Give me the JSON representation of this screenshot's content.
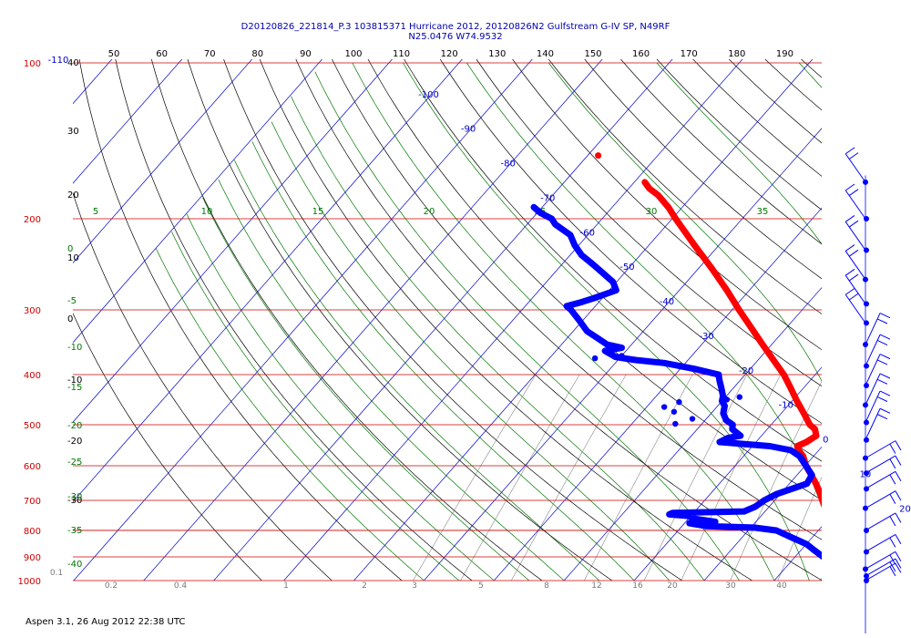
{
  "header": {
    "title_line1": "D20120826_221814_P.3 103815371 Hurricane 2012, 20120826N2 Gulfstream G-IV SP, N49RF",
    "title_line2": "N25.0476 W74.9532"
  },
  "footer": {
    "text": "Aspen 3.1, 26 Aug 2012  22:38 UTC"
  },
  "colors": {
    "temperature": "#ff0000",
    "dewpoint": "#0000ff",
    "isobar": "#cc0000",
    "isotherm": "#0000cc",
    "dry_adiabat": "#000000",
    "moist_adiabat": "#007700",
    "mixing_ratio": "#888888",
    "wind_barb": "#0000ff"
  },
  "chart_data": {
    "type": "scatter",
    "subtype": "skew-T log-P diagram",
    "y_axis": {
      "label": "",
      "scale": "log",
      "ticks": [
        "100",
        "200",
        "300",
        "400",
        "500",
        "600",
        "700",
        "800",
        "900",
        "1000"
      ],
      "ylim": [
        1000,
        100
      ]
    },
    "x_axis_top": {
      "ticks": [
        "50",
        "60",
        "70",
        "80",
        "90",
        "100",
        "110",
        "120",
        "130",
        "140",
        "150",
        "160",
        "170",
        "180",
        "190"
      ]
    },
    "isotherm_labels": [
      "-110",
      "-100",
      "-90",
      "-80",
      "-70",
      "-60",
      "-50",
      "-40",
      "-30",
      "-20",
      "-10",
      "0",
      "10",
      "20",
      "30",
      "40"
    ],
    "dry_adiabat_labels": [
      "40",
      "30",
      "20",
      "10",
      "0",
      "-10",
      "-20",
      "-30"
    ],
    "moist_adiabat_labels_top": [
      "5",
      "10",
      "15",
      "20",
      "25",
      "30",
      "35"
    ],
    "moist_adiabat_labels_left": [
      "0",
      "-5",
      "-10",
      "-15",
      "-20",
      "-25",
      "-30",
      "-35",
      "-40"
    ],
    "mixing_ratio_labels": [
      "0.1",
      "0.2",
      "0.4",
      "1",
      "2",
      "3",
      "5",
      "8",
      "12",
      "16",
      "20",
      "30",
      "40"
    ],
    "series": [
      {
        "name": "temperature",
        "points": [
          [
            1000,
            25.8
          ],
          [
            990,
            25.0
          ],
          [
            975,
            24.0
          ],
          [
            950,
            22.3
          ],
          [
            925,
            20.5
          ],
          [
            900,
            19.3
          ],
          [
            875,
            17.6
          ],
          [
            850,
            16.1
          ],
          [
            825,
            14.5
          ],
          [
            800,
            13.0
          ],
          [
            775,
            11.1
          ],
          [
            750,
            9.6
          ],
          [
            725,
            8.2
          ],
          [
            700,
            6.8
          ],
          [
            675,
            5.4
          ],
          [
            650,
            3.8
          ],
          [
            625,
            2.0
          ],
          [
            600,
            0.1
          ],
          [
            575,
            -1.5
          ],
          [
            560,
            -2.9
          ],
          [
            550,
            -3.6
          ],
          [
            540,
            -2.8
          ],
          [
            525,
            -2.2
          ],
          [
            510,
            -3.2
          ],
          [
            500,
            -4.5
          ],
          [
            475,
            -6.8
          ],
          [
            450,
            -9.3
          ],
          [
            425,
            -11.8
          ],
          [
            400,
            -14.5
          ],
          [
            375,
            -17.8
          ],
          [
            350,
            -21.3
          ],
          [
            325,
            -25.0
          ],
          [
            300,
            -29.0
          ],
          [
            275,
            -33.2
          ],
          [
            250,
            -38.0
          ],
          [
            225,
            -43.5
          ],
          [
            200,
            -49.5
          ],
          [
            190,
            -52.0
          ],
          [
            180,
            -55.0
          ],
          [
            175,
            -57.0
          ],
          [
            170,
            -58.5
          ]
        ]
      },
      {
        "name": "dewpoint",
        "points": [
          [
            1000,
            22.5
          ],
          [
            990,
            22.2
          ],
          [
            975,
            22.7
          ],
          [
            950,
            19.0
          ],
          [
            935,
            17.8
          ],
          [
            925,
            16.0
          ],
          [
            900,
            14.0
          ],
          [
            875,
            12.0
          ],
          [
            850,
            10.0
          ],
          [
            825,
            7.0
          ],
          [
            800,
            4.0
          ],
          [
            790,
            0.5
          ],
          [
            785,
            -6.5
          ],
          [
            775,
            -9.3
          ],
          [
            770,
            -5.8
          ],
          [
            760,
            -9.0
          ],
          [
            750,
            -10.5
          ],
          [
            745,
            -13.3
          ],
          [
            740,
            -13.0
          ],
          [
            735,
            -3.0
          ],
          [
            720,
            -2.0
          ],
          [
            700,
            -1.5
          ],
          [
            680,
            -0.5
          ],
          [
            650,
            2.5
          ],
          [
            625,
            2.1
          ],
          [
            600,
            0.1
          ],
          [
            575,
            -2.0
          ],
          [
            560,
            -4.0
          ],
          [
            550,
            -7.5
          ],
          [
            540,
            -15.2
          ],
          [
            530,
            -14.5
          ],
          [
            525,
            -13.0
          ],
          [
            510,
            -15.0
          ],
          [
            500,
            -15.5
          ],
          [
            490,
            -17.0
          ],
          [
            475,
            -18.3
          ],
          [
            460,
            -19.0
          ],
          [
            450,
            -20.0
          ],
          [
            440,
            -20.5
          ],
          [
            425,
            -21.7
          ],
          [
            410,
            -23.0
          ],
          [
            400,
            -23.8
          ],
          [
            390,
            -28.0
          ],
          [
            380,
            -33.0
          ],
          [
            375,
            -37.5
          ],
          [
            370,
            -40.7
          ],
          [
            360,
            -43.0
          ],
          [
            355,
            -41.0
          ],
          [
            350,
            -43.5
          ],
          [
            340,
            -45.7
          ],
          [
            330,
            -48.0
          ],
          [
            315,
            -50.4
          ],
          [
            300,
            -53.0
          ],
          [
            295,
            -54.1
          ],
          [
            290,
            -52.5
          ],
          [
            285,
            -51.3
          ],
          [
            275,
            -49.0
          ],
          [
            265,
            -50.5
          ],
          [
            255,
            -53.0
          ],
          [
            245,
            -55.6
          ],
          [
            235,
            -58.4
          ],
          [
            225,
            -60.6
          ],
          [
            215,
            -62.5
          ],
          [
            205,
            -66.0
          ],
          [
            200,
            -67.2
          ],
          [
            195,
            -69.5
          ],
          [
            190,
            -71.2
          ]
        ]
      }
    ],
    "isolated_temperature_point": [
      151,
      -68.5
    ],
    "dewpoint_scattered_dots": [
      [
        372,
        -43.5
      ],
      [
        368,
        -40.0
      ],
      [
        452,
        -26.0
      ],
      [
        462,
        -27.5
      ],
      [
        472,
        -25.5
      ],
      [
        487,
        -22.0
      ],
      [
        498,
        -23.8
      ],
      [
        442,
        -18.0
      ],
      [
        447,
        -19.5
      ]
    ],
    "wind_profile": {
      "dot_pressures": [
        170,
        200,
        230,
        262,
        292,
        318,
        350,
        385,
        420,
        458,
        495,
        535,
        580,
        620,
        665,
        725,
        800,
        880,
        950,
        980,
        1000
      ]
    }
  }
}
